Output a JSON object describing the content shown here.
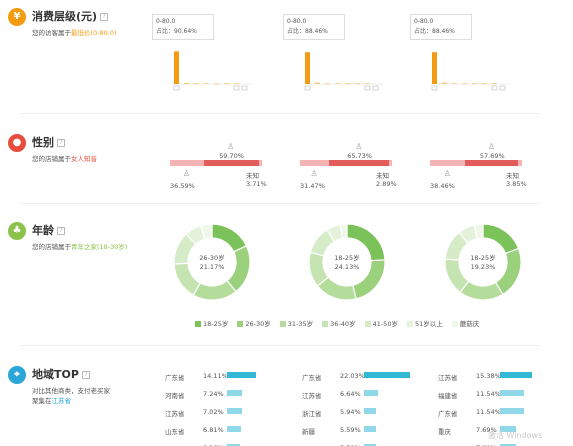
{
  "consumption": {
    "title": "消费层级(元)",
    "help": "?",
    "desc_prefix": "您的访客属于",
    "desc_highlight": "最低价",
    "desc_range": "(0-80.0)",
    "accent": "#f39c12",
    "columns": [
      {
        "tip_range": "0-80.0",
        "tip_ratio": "占比：90.64%"
      },
      {
        "tip_range": "0-80.0",
        "tip_ratio": "占比：88.46%"
      },
      {
        "tip_range": "0-80.0",
        "tip_ratio": "占比：88.46%"
      }
    ]
  },
  "gender": {
    "title": "性别",
    "help": "?",
    "desc_prefix": "您的店铺属于",
    "desc_highlight": "女人知音",
    "accent": "#e74c3c",
    "unknown_label": "未知",
    "columns": [
      {
        "female": "59.70%",
        "male": "36.59%",
        "unknown": "3.71%"
      },
      {
        "female": "65.73%",
        "male": "31.47%",
        "unknown": "2.89%"
      },
      {
        "female": "57.69%",
        "male": "38.46%",
        "unknown": "3.85%"
      }
    ]
  },
  "age": {
    "title": "年龄",
    "help": "?",
    "desc_prefix": "您的店铺属于",
    "desc_highlight": "青年之家",
    "desc_range": "(18-30岁)",
    "accent": "#8bc34a",
    "donuts": [
      {
        "label": "26-30岁",
        "pct": "21.17%"
      },
      {
        "label": "18-25岁",
        "pct": "24.13%"
      },
      {
        "label": "18-25岁",
        "pct": "19.23%"
      }
    ],
    "legend": [
      "18-25岁",
      "26-30岁",
      "31-35岁",
      "36-40岁",
      "41-50岁",
      "51岁以上",
      "蘑菇庆"
    ]
  },
  "region": {
    "title": "地域TOP",
    "help": "?",
    "desc_line1": "对比其他商类，支付老买家",
    "desc_prefix": "聚集在",
    "desc_highlight": "江苏省",
    "accent": "#2aa6d9",
    "columns": [
      {
        "rows": [
          {
            "name": "广东省",
            "pct": "14.11%"
          },
          {
            "name": "河南省",
            "pct": "7.24%"
          },
          {
            "name": "江苏省",
            "pct": "7.02%"
          },
          {
            "name": "山东省",
            "pct": "6.81%"
          },
          {
            "name": "浙江省",
            "pct": "6.26%"
          }
        ]
      },
      {
        "rows": [
          {
            "name": "广东省",
            "pct": "22.03%"
          },
          {
            "name": "江苏省",
            "pct": "6.64%"
          },
          {
            "name": "浙江省",
            "pct": "5.94%"
          },
          {
            "name": "新疆",
            "pct": "5.59%"
          },
          {
            "name": "河南省",
            "pct": "5.59%"
          }
        ]
      },
      {
        "rows": [
          {
            "name": "江苏省",
            "pct": "15.38%"
          },
          {
            "name": "福建省",
            "pct": "11.54%"
          },
          {
            "name": "广东省",
            "pct": "11.54%"
          },
          {
            "name": "重庆",
            "pct": "7.69%"
          },
          {
            "name": "河南省",
            "pct": "7.69%"
          }
        ]
      }
    ]
  },
  "watermark": "激活 Windows",
  "chart_data": [
    {
      "type": "bar",
      "title": "消费层级(元)",
      "series": [
        {
          "values": [
            90.64,
            3,
            2,
            1.5,
            1,
            0.8,
            0.6
          ]
        },
        {
          "values": [
            88.46,
            4,
            2,
            1.5,
            1,
            0.8,
            0.6
          ]
        },
        {
          "values": [
            88.46,
            4,
            2,
            1.5,
            1,
            0.8,
            0.6
          ]
        }
      ],
      "ylim": [
        0,
        100
      ]
    },
    {
      "type": "bar",
      "title": "性别",
      "categories": [
        "女",
        "男",
        "未知"
      ],
      "series": [
        {
          "values": [
            59.7,
            36.59,
            3.71
          ]
        },
        {
          "values": [
            65.73,
            31.47,
            2.89
          ]
        },
        {
          "values": [
            57.69,
            38.46,
            3.85
          ]
        }
      ]
    },
    {
      "type": "pie",
      "title": "年龄",
      "categories": [
        "18-25岁",
        "26-30岁",
        "31-35岁",
        "36-40岁",
        "41-50岁",
        "51岁以上",
        "蘑菇庆"
      ],
      "colors": [
        "#7cc25a",
        "#9bd17d",
        "#b4dc9b",
        "#c6e4b2",
        "#d6ecc9",
        "#e4f2db",
        "#eef7e8"
      ],
      "series": [
        {
          "values": [
            18,
            21.17,
            19,
            16,
            14,
            7,
            4.83
          ]
        },
        {
          "values": [
            24.13,
            22,
            18,
            15,
            12,
            6,
            2.87
          ]
        },
        {
          "values": [
            19.23,
            22,
            19,
            16,
            13,
            7,
            3.77
          ]
        }
      ]
    },
    {
      "type": "bar",
      "title": "地域TOP",
      "series": [
        {
          "categories": [
            "广东省",
            "河南省",
            "江苏省",
            "山东省",
            "浙江省"
          ],
          "values": [
            14.11,
            7.24,
            7.02,
            6.81,
            6.26
          ]
        },
        {
          "categories": [
            "广东省",
            "江苏省",
            "浙江省",
            "新疆",
            "河南省"
          ],
          "values": [
            22.03,
            6.64,
            5.94,
            5.59,
            5.59
          ]
        },
        {
          "categories": [
            "江苏省",
            "福建省",
            "广东省",
            "重庆",
            "河南省"
          ],
          "values": [
            15.38,
            11.54,
            11.54,
            7.69,
            7.69
          ]
        }
      ]
    }
  ]
}
